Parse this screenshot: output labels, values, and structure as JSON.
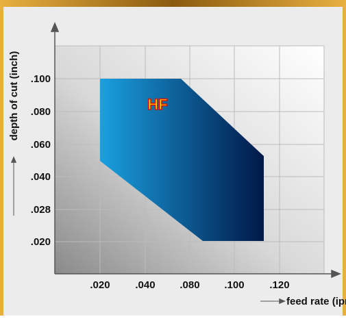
{
  "x_axis": {
    "label": "feed rate (ipr)",
    "ticks": [
      ".020",
      ".040",
      ".080",
      ".100",
      ".120"
    ]
  },
  "y_axis": {
    "label": "depth of cut (inch)",
    "ticks": [
      ".100",
      ".080",
      ".060",
      ".040",
      ".028",
      ".020"
    ]
  },
  "region_label": "HF"
}
